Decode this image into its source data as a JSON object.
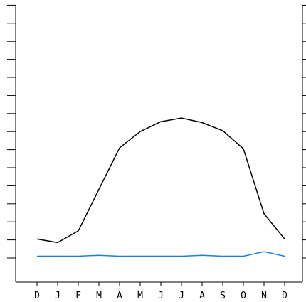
{
  "chart_data": {
    "type": "line",
    "categories": [
      "D",
      "J",
      "F",
      "M",
      "A",
      "M",
      "J",
      "J",
      "A",
      "S",
      "O",
      "N",
      "D"
    ],
    "ylim": [
      0,
      14
    ],
    "y_ticks": [
      0,
      1,
      2,
      3,
      4,
      5,
      6,
      7,
      8,
      9,
      10,
      11,
      12,
      13,
      14
    ],
    "y_tick_labels": "none",
    "grid": false,
    "legend": "none",
    "series": [
      {
        "color": "#000000",
        "values": [
          1.05,
          0.85,
          1.5,
          3.8,
          6.1,
          7.0,
          7.55,
          7.75,
          7.5,
          7.05,
          6.05,
          2.45,
          1.05
        ]
      },
      {
        "color": "#1f7fd6",
        "values": [
          0.1,
          0.1,
          0.1,
          0.15,
          0.1,
          0.1,
          0.1,
          0.1,
          0.15,
          0.1,
          0.1,
          0.35,
          0.1
        ]
      }
    ]
  }
}
